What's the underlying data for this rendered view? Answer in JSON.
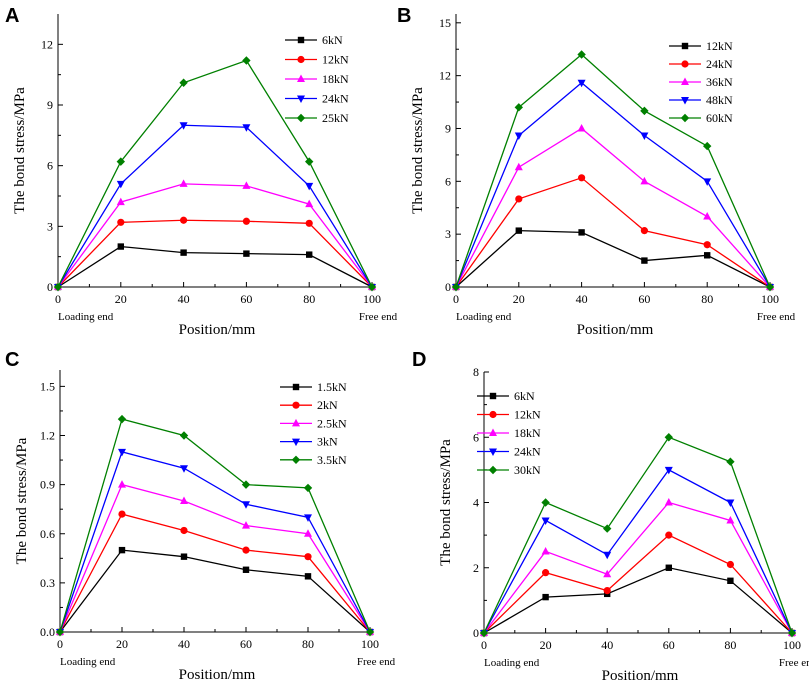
{
  "chart_data": [
    {
      "type": "line",
      "panel": "A",
      "xlabel": "Position/mm",
      "ylabel": "The bond stress/MPa",
      "x": [
        0,
        20,
        40,
        60,
        80,
        100
      ],
      "xticks": [
        "0",
        "20",
        "40",
        "60",
        "80",
        "100"
      ],
      "yticks": [
        "0",
        "3",
        "6",
        "9",
        "12"
      ],
      "xlim": [
        0,
        100
      ],
      "ylim": [
        0,
        13.5
      ],
      "grid": false,
      "legend_position": "top-right",
      "loading_end_label": "Loading end",
      "free_end_label": "Free end",
      "series": [
        {
          "name": "6kN",
          "color": "#000000",
          "marker": "square",
          "values": [
            0,
            2.0,
            1.7,
            1.65,
            1.6,
            0
          ]
        },
        {
          "name": "12kN",
          "color": "#ff0000",
          "marker": "circle",
          "values": [
            0,
            3.2,
            3.3,
            3.25,
            3.15,
            0
          ]
        },
        {
          "name": "18kN",
          "color": "#ff00ff",
          "marker": "triangle-up",
          "values": [
            0,
            4.2,
            5.1,
            5.0,
            4.1,
            0
          ]
        },
        {
          "name": "24kN",
          "color": "#0000ff",
          "marker": "triangle-down",
          "values": [
            0,
            5.1,
            8.0,
            7.9,
            5.0,
            0
          ]
        },
        {
          "name": "25kN",
          "color": "#008000",
          "marker": "diamond",
          "values": [
            0,
            6.2,
            10.1,
            11.2,
            6.2,
            0
          ]
        }
      ]
    },
    {
      "type": "line",
      "panel": "B",
      "xlabel": "Position/mm",
      "ylabel": "The bond stress/MPa",
      "x": [
        0,
        20,
        40,
        60,
        80,
        100
      ],
      "xticks": [
        "0",
        "20",
        "40",
        "60",
        "80",
        "100"
      ],
      "yticks": [
        "0",
        "3",
        "6",
        "9",
        "12",
        "15"
      ],
      "xlim": [
        0,
        100
      ],
      "ylim": [
        0,
        15.5
      ],
      "grid": false,
      "legend_position": "top-right",
      "loading_end_label": "Loading end",
      "free_end_label": "Free end",
      "series": [
        {
          "name": "12kN",
          "color": "#000000",
          "marker": "square",
          "values": [
            0,
            3.2,
            3.1,
            1.5,
            1.8,
            0
          ]
        },
        {
          "name": "24kN",
          "color": "#ff0000",
          "marker": "circle",
          "values": [
            0,
            5.0,
            6.2,
            3.2,
            2.4,
            0
          ]
        },
        {
          "name": "36kN",
          "color": "#ff00ff",
          "marker": "triangle-up",
          "values": [
            0,
            6.8,
            9.0,
            6.0,
            4.0,
            0
          ]
        },
        {
          "name": "48kN",
          "color": "#0000ff",
          "marker": "triangle-down",
          "values": [
            0,
            8.6,
            11.6,
            8.6,
            6.0,
            0
          ]
        },
        {
          "name": "60kN",
          "color": "#008000",
          "marker": "diamond",
          "values": [
            0,
            10.2,
            13.2,
            10.0,
            8.0,
            0
          ]
        }
      ]
    },
    {
      "type": "line",
      "panel": "C",
      "xlabel": "Position/mm",
      "ylabel": "The bond stress/MPa",
      "x": [
        0,
        20,
        40,
        60,
        80,
        100
      ],
      "xticks": [
        "0",
        "20",
        "40",
        "60",
        "80",
        "100"
      ],
      "yticks": [
        "0.0",
        "0.3",
        "0.6",
        "0.9",
        "1.2",
        "1.5"
      ],
      "xlim": [
        0,
        100
      ],
      "ylim": [
        0,
        1.6
      ],
      "grid": false,
      "legend_position": "top-right",
      "loading_end_label": "Loading end",
      "free_end_label": "Free end",
      "series": [
        {
          "name": "1.5kN",
          "color": "#000000",
          "marker": "square",
          "values": [
            0,
            0.5,
            0.46,
            0.38,
            0.34,
            0
          ]
        },
        {
          "name": "2kN",
          "color": "#ff0000",
          "marker": "circle",
          "values": [
            0,
            0.72,
            0.62,
            0.5,
            0.46,
            0
          ]
        },
        {
          "name": "2.5kN",
          "color": "#ff00ff",
          "marker": "triangle-up",
          "values": [
            0,
            0.9,
            0.8,
            0.65,
            0.6,
            0
          ]
        },
        {
          "name": "3kN",
          "color": "#0000ff",
          "marker": "triangle-down",
          "values": [
            0,
            1.1,
            1.0,
            0.78,
            0.7,
            0
          ]
        },
        {
          "name": "3.5kN",
          "color": "#008000",
          "marker": "diamond",
          "values": [
            0,
            1.3,
            1.2,
            0.9,
            0.88,
            0
          ]
        }
      ]
    },
    {
      "type": "line",
      "panel": "D",
      "xlabel": "Position/mm",
      "ylabel": "The bond stress/MPa",
      "x": [
        0,
        20,
        40,
        60,
        80,
        100
      ],
      "xticks": [
        "0",
        "20",
        "40",
        "60",
        "80",
        "100"
      ],
      "yticks": [
        "0",
        "2",
        "4",
        "6",
        "8"
      ],
      "xlim": [
        0,
        100
      ],
      "ylim": [
        0,
        8
      ],
      "grid": false,
      "legend_position": "top-left",
      "loading_end_label": "Loading end",
      "free_end_label": "Free end",
      "series": [
        {
          "name": "6kN",
          "color": "#000000",
          "marker": "square",
          "values": [
            0,
            1.1,
            1.2,
            2.0,
            1.6,
            0
          ]
        },
        {
          "name": "12kN",
          "color": "#ff0000",
          "marker": "circle",
          "values": [
            0,
            1.85,
            1.3,
            3.0,
            2.1,
            0
          ]
        },
        {
          "name": "18kN",
          "color": "#ff00ff",
          "marker": "triangle-up",
          "values": [
            0,
            2.5,
            1.8,
            4.0,
            3.45,
            0
          ]
        },
        {
          "name": "24kN",
          "color": "#0000ff",
          "marker": "triangle-down",
          "values": [
            0,
            3.45,
            2.4,
            5.0,
            4.0,
            0
          ]
        },
        {
          "name": "30kN",
          "color": "#008000",
          "marker": "diamond",
          "values": [
            0,
            4.0,
            3.2,
            6.0,
            5.25,
            0
          ]
        }
      ]
    }
  ]
}
